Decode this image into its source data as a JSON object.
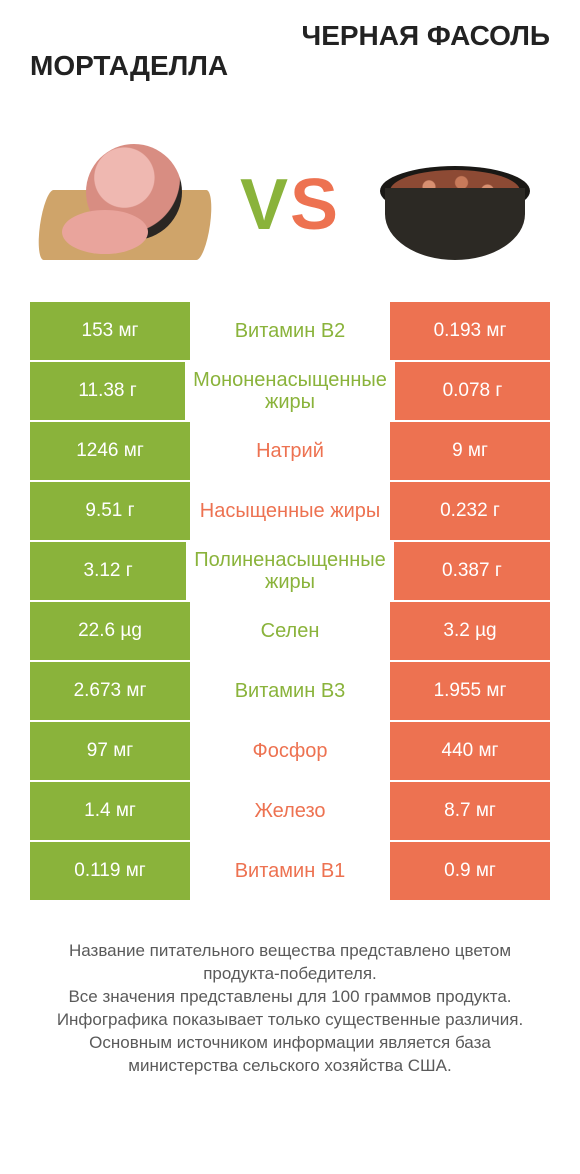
{
  "titles": {
    "left": "МОРТАДЕЛЛА",
    "right": "ЧЕРНАЯ ФАСОЛЬ"
  },
  "vs": {
    "v": "V",
    "s": "S"
  },
  "colors": {
    "green": "#8ab33b",
    "orange": "#ed7251",
    "text": "#5a5a5a",
    "background": "#ffffff"
  },
  "rows": [
    {
      "left": "153 мг",
      "label": "Витамин B2",
      "right": "0.193 мг",
      "left_color": "green",
      "label_color": "green",
      "right_color": "orange"
    },
    {
      "left": "11.38 г",
      "label": "Мононенасыщенные жиры",
      "right": "0.078 г",
      "left_color": "green",
      "label_color": "green",
      "right_color": "orange"
    },
    {
      "left": "1246 мг",
      "label": "Натрий",
      "right": "9 мг",
      "left_color": "green",
      "label_color": "orange",
      "right_color": "orange"
    },
    {
      "left": "9.51 г",
      "label": "Насыщенные жиры",
      "right": "0.232 г",
      "left_color": "green",
      "label_color": "orange",
      "right_color": "orange"
    },
    {
      "left": "3.12 г",
      "label": "Полиненасыщенные жиры",
      "right": "0.387 г",
      "left_color": "green",
      "label_color": "green",
      "right_color": "orange"
    },
    {
      "left": "22.6 µg",
      "label": "Селен",
      "right": "3.2 µg",
      "left_color": "green",
      "label_color": "green",
      "right_color": "orange"
    },
    {
      "left": "2.673 мг",
      "label": "Витамин B3",
      "right": "1.955 мг",
      "left_color": "green",
      "label_color": "green",
      "right_color": "orange"
    },
    {
      "left": "97 мг",
      "label": "Фосфор",
      "right": "440 мг",
      "left_color": "green",
      "label_color": "orange",
      "right_color": "orange"
    },
    {
      "left": "1.4 мг",
      "label": "Железо",
      "right": "8.7 мг",
      "left_color": "green",
      "label_color": "orange",
      "right_color": "orange"
    },
    {
      "left": "0.119 мг",
      "label": "Витамин B1",
      "right": "0.9 мг",
      "left_color": "green",
      "label_color": "orange",
      "right_color": "orange"
    }
  ],
  "footer": {
    "l1": "Название питательного вещества представлено цветом продукта-победителя.",
    "l2": "Все значения представлены для 100 граммов продукта.",
    "l3": "Инфографика показывает только существенные различия.",
    "l4": "Основным источником информации является база министерства сельского хозяйства США."
  }
}
